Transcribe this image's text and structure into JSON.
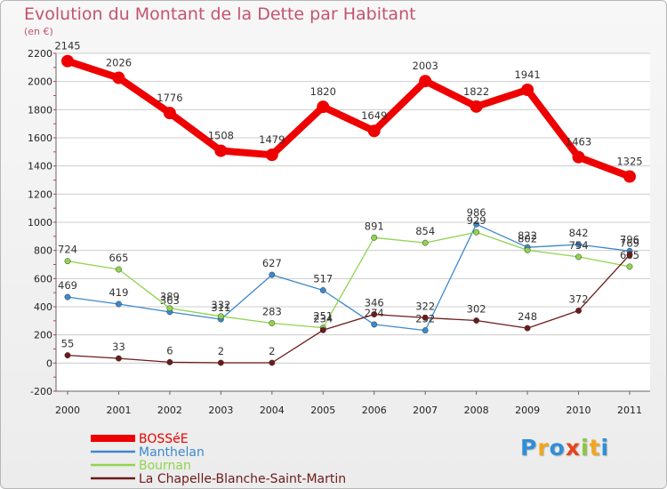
{
  "page": {
    "title": "Evolution du Montant de la Dette par Habitant",
    "unit": "(en €)",
    "logo": {
      "text": "Proxiti",
      "letters": [
        {
          "ch": "P",
          "color": "#2f8fd8"
        },
        {
          "ch": "r",
          "color": "#f2a61c"
        },
        {
          "ch": "o",
          "color": "#2f8fd8"
        },
        {
          "ch": "x",
          "color": "#e8431c"
        },
        {
          "ch": "i",
          "color": "#8dc63f"
        },
        {
          "ch": "t",
          "color": "#f2a61c"
        },
        {
          "ch": "i",
          "color": "#2f8fd8"
        }
      ]
    }
  },
  "chart_data": {
    "type": "line",
    "title": "Evolution du Montant de la Dette par Habitant",
    "subtitle": "(en €)",
    "xlabel": "",
    "ylabel": "",
    "x": [
      "2000",
      "2001",
      "2002",
      "2003",
      "2004",
      "2005",
      "2006",
      "2007",
      "2008",
      "2009",
      "2010",
      "2011"
    ],
    "ylim": [
      -200,
      2200
    ],
    "yticks": [
      -200,
      0,
      200,
      400,
      600,
      800,
      1000,
      1200,
      1400,
      1600,
      1800,
      2000,
      2200
    ],
    "grid": "horizontal",
    "legend_position": "bottom-left",
    "series": [
      {
        "name": "BOSSéE",
        "color": "#ee0000",
        "emphasis": true,
        "values": [
          2145,
          2026,
          1776,
          1508,
          1479,
          1820,
          1649,
          2003,
          1822,
          1941,
          1463,
          1325
        ]
      },
      {
        "name": "Manthelan",
        "color": "#3c89cc",
        "emphasis": false,
        "values": [
          469,
          419,
          363,
          311,
          627,
          517,
          274,
          232,
          986,
          822,
          842,
          796
        ]
      },
      {
        "name": "Bournan",
        "color": "#8fd44e",
        "emphasis": false,
        "values": [
          724,
          665,
          389,
          332,
          283,
          251,
          891,
          854,
          929,
          802,
          754,
          685
        ]
      },
      {
        "name": "La Chapelle-Blanche-Saint-Martin",
        "color": "#6e1a1a",
        "emphasis": false,
        "values": [
          55,
          33,
          6,
          2,
          2,
          234,
          346,
          322,
          302,
          248,
          372,
          769
        ]
      }
    ]
  }
}
